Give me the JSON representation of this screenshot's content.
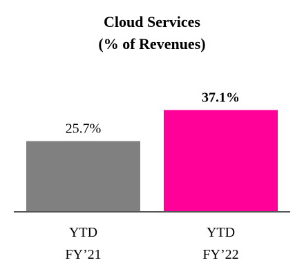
{
  "chart_data": {
    "type": "bar",
    "title": "Cloud Services",
    "subtitle": "(% of Revenues)",
    "categories": [
      [
        "YTD",
        "FY’21"
      ],
      [
        "YTD",
        "FY’22"
      ]
    ],
    "values": [
      25.7,
      37.1
    ],
    "value_labels": [
      "25.7%",
      "37.1%"
    ],
    "bold_value_label": [
      false,
      true
    ],
    "colors": [
      "#808080",
      "#ff0099"
    ],
    "axis_color": "#555555",
    "ylim": [
      0,
      40
    ],
    "grid": false,
    "legend": "none"
  }
}
